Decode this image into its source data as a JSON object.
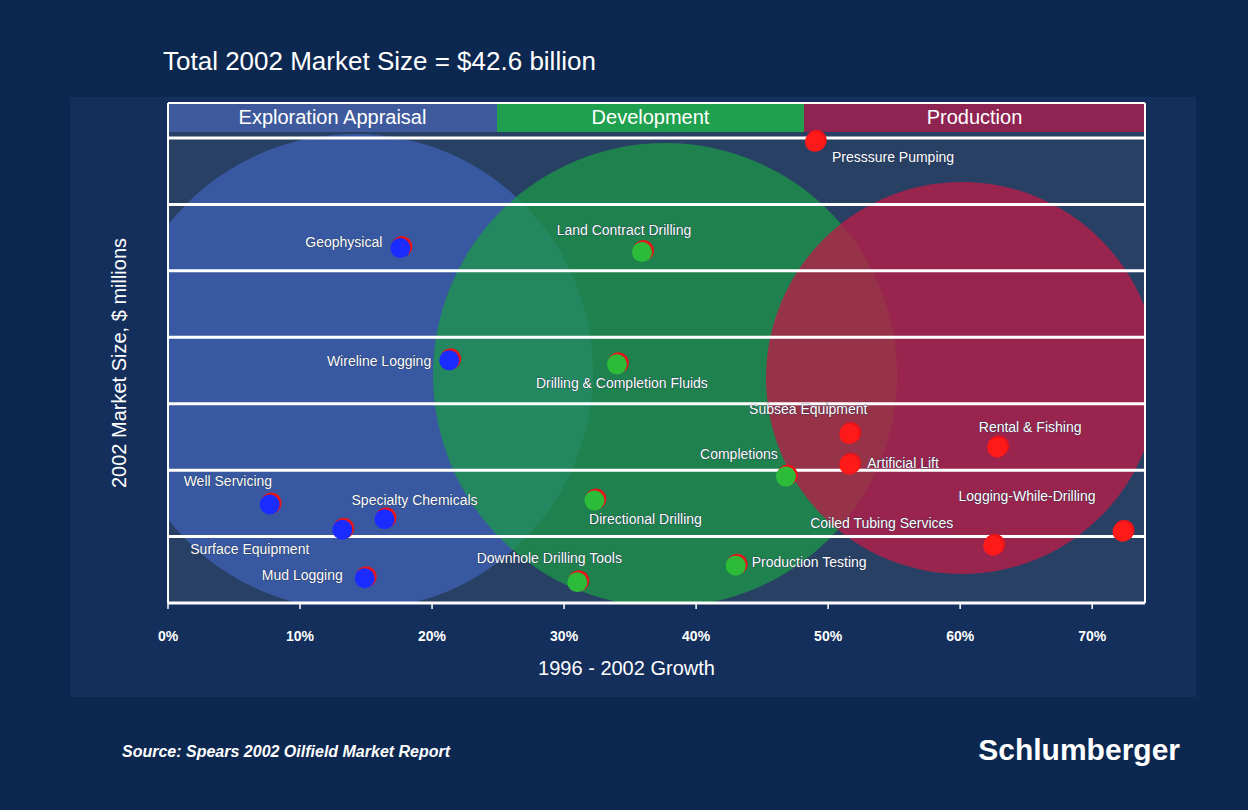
{
  "chart_data": {
    "type": "scatter",
    "title": "Total 2002 Market Size = $42.6 billion",
    "x_label": "1996 - 2002 Growth",
    "y_label": "2002 Market Size, $ millions",
    "source": "Source: Spears 2002 Oilfield Market Report",
    "brand": "Schlumberger",
    "xlim": [
      0,
      74
    ],
    "xticks": [
      {
        "value": 0,
        "label": "0%"
      },
      {
        "value": 10,
        "label": "10%"
      },
      {
        "value": 20,
        "label": "20%"
      },
      {
        "value": 30,
        "label": "30%"
      },
      {
        "value": 40,
        "label": "40%"
      },
      {
        "value": 50,
        "label": "50%"
      },
      {
        "value": 60,
        "label": "60%"
      },
      {
        "value": 70,
        "label": "70%"
      }
    ],
    "ylim": [
      0,
      7000
    ],
    "yticks": [
      0,
      1000,
      2000,
      3000,
      4000,
      5000,
      6000,
      7000
    ],
    "grid": true,
    "tick_labels": "x",
    "series": [
      {
        "name": "Exploration Appraisal",
        "color": "#1a2cff",
        "labels": [
          "Geophysical",
          "Wireline Logging",
          "Well Servicing",
          "Specialty Chemicals",
          "Surface Equipment",
          "Mud Logging"
        ],
        "x": [
          17.6,
          21.3,
          7.7,
          16.4,
          13.2,
          14.9
        ],
        "values": [
          5350,
          3660,
          1490,
          1270,
          1110,
          380
        ]
      },
      {
        "name": "Development",
        "color": "#2dbb3a",
        "labels": [
          "Land Contract Drilling",
          "Drilling & Completion Fluids",
          "Completions",
          "Directional Drilling",
          "Downhole Drilling Tools",
          "Production Testing"
        ],
        "x": [
          35.9,
          34.0,
          46.8,
          32.3,
          31.0,
          43.0
        ],
        "values": [
          5290,
          3600,
          1910,
          1550,
          320,
          570
        ]
      },
      {
        "name": "Production",
        "color": "#ff1a1a",
        "labels": [
          "Presssure Pumping",
          "Subsea Equipment",
          "Artificial Lift",
          "Rental & Fishing",
          "Logging-While-Drilling",
          "Coiled Tubing Services"
        ],
        "x": [
          49.0,
          51.6,
          51.6,
          62.8,
          72.3,
          62.5
        ],
        "values": [
          6950,
          2550,
          2090,
          2350,
          1080,
          870
        ]
      }
    ]
  }
}
